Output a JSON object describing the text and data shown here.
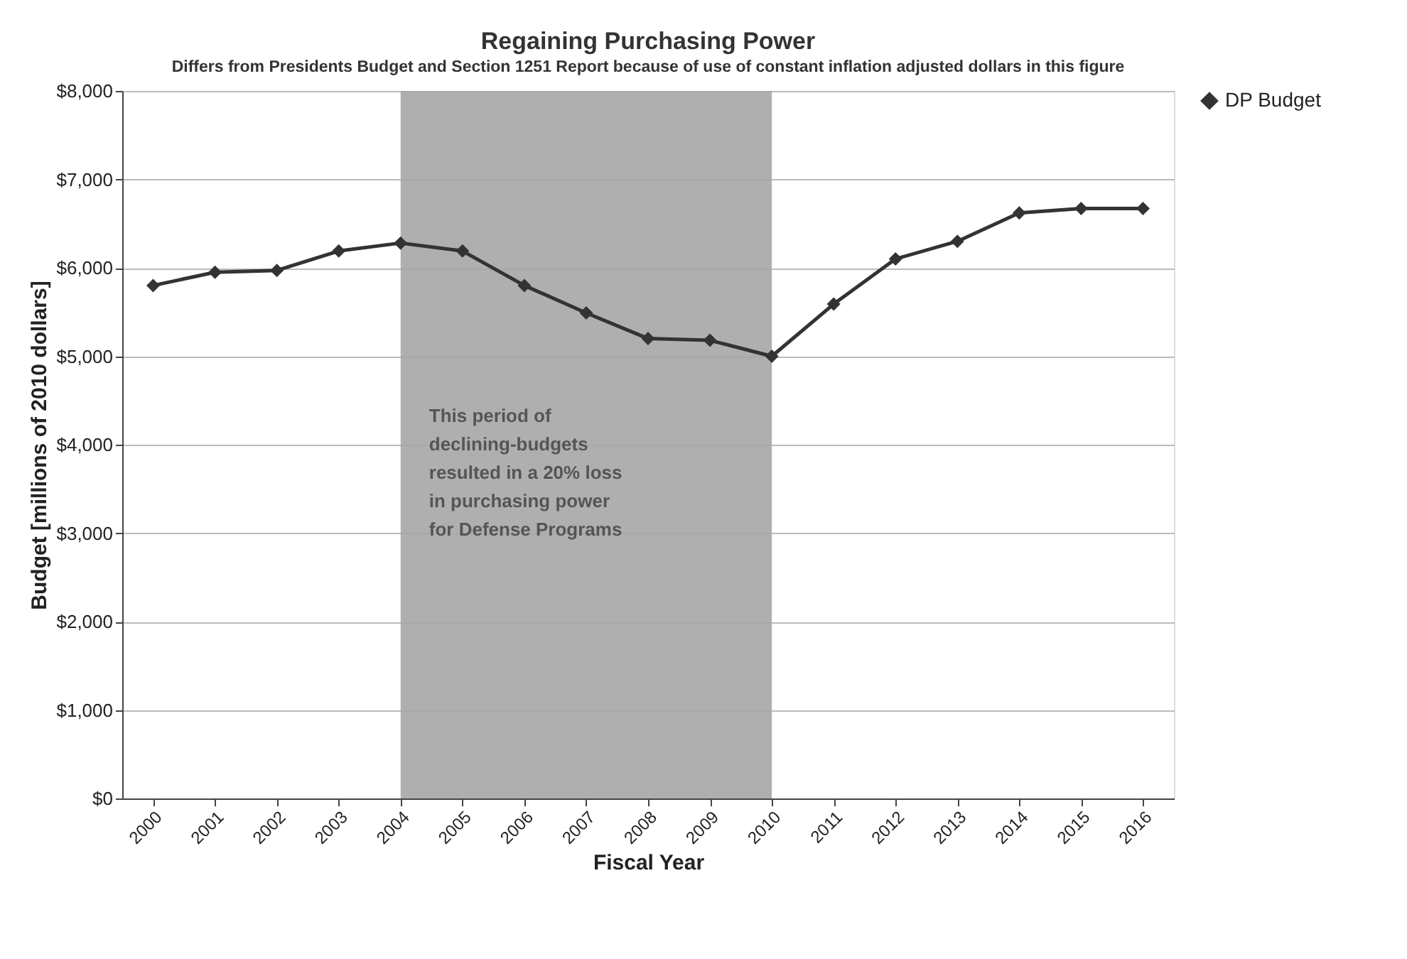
{
  "chart_data": {
    "type": "line",
    "title": "Regaining Purchasing Power",
    "subtitle": "Differs from Presidents Budget and Section 1251 Report because of use of constant inflation adjusted dollars in this figure",
    "xlabel": "Fiscal Year",
    "ylabel": "Budget [millions of 2010 dollars]",
    "categories": [
      "2000",
      "2001",
      "2002",
      "2003",
      "2004",
      "2005",
      "2006",
      "2007",
      "2008",
      "2009",
      "2010",
      "2011",
      "2012",
      "2013",
      "2014",
      "2015",
      "2016"
    ],
    "series": [
      {
        "name": "DP Budget",
        "color": "#333333",
        "values": [
          5800,
          5950,
          5970,
          6190,
          6280,
          6190,
          5800,
          5490,
          5200,
          5180,
          5000,
          5590,
          6100,
          6300,
          6620,
          6670,
          6670
        ]
      }
    ],
    "ylim": [
      0,
      8000
    ],
    "yticks": [
      {
        "value": 0,
        "label": "$0"
      },
      {
        "value": 1000,
        "label": "$1,000"
      },
      {
        "value": 2000,
        "label": "$2,000"
      },
      {
        "value": 3000,
        "label": "$3,000"
      },
      {
        "value": 4000,
        "label": "$4,000"
      },
      {
        "value": 5000,
        "label": "$5,000"
      },
      {
        "value": 6000,
        "label": "$6,000"
      },
      {
        "value": 7000,
        "label": "$7,000"
      },
      {
        "value": 8000,
        "label": "$8,000"
      }
    ],
    "bands": [
      {
        "axis": "x",
        "from": "2004",
        "to": "2010",
        "color": "#a6a6a6",
        "label": "This period of\ndeclining-budgets\nresulted in a 20% loss\nin purchasing power\nfor Defense Programs"
      }
    ],
    "grid": "y",
    "legend": "right",
    "marker": "diamond",
    "line_style": "solid"
  }
}
